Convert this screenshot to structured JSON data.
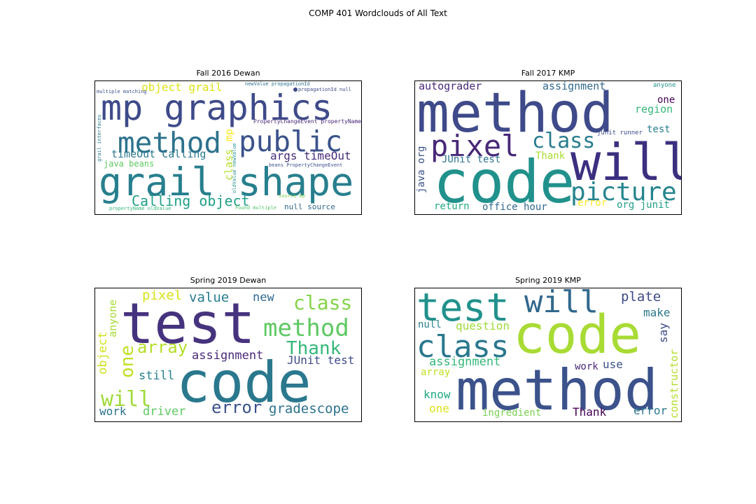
{
  "figure": {
    "suptitle": "COMP 401 Wordclouds of All Text"
  },
  "chart_data": [
    {
      "type": "wordcloud",
      "title": "Fall 2016 Dewan",
      "words": [
        {
          "text": "mp graphics",
          "weight": 1.0
        },
        {
          "text": "grail shape",
          "weight": 0.98
        },
        {
          "text": "method",
          "weight": 0.82
        },
        {
          "text": "public",
          "weight": 0.82
        },
        {
          "text": "Calling object",
          "weight": 0.45
        },
        {
          "text": "object grail",
          "weight": 0.4
        },
        {
          "text": "args timeOut",
          "weight": 0.4
        },
        {
          "text": "timeOut Calling",
          "weight": 0.38
        },
        {
          "text": "class",
          "weight": 0.35
        },
        {
          "text": "mp",
          "weight": 0.33
        },
        {
          "text": "java beans",
          "weight": 0.3
        },
        {
          "text": "null source",
          "weight": 0.29
        },
        {
          "text": "PropertyChangeEvent propertyName",
          "weight": 0.2
        },
        {
          "text": "beans PropertyChangeEvent",
          "weight": 0.18
        },
        {
          "text": "propagationId null",
          "weight": 0.18
        },
        {
          "text": "newValue propagationId",
          "weight": 0.17
        },
        {
          "text": "propertyName oldValue",
          "weight": 0.17
        },
        {
          "text": "oldValue newValue",
          "weight": 0.17
        },
        {
          "text": "grail interfaces",
          "weight": 0.16
        },
        {
          "text": "source mp",
          "weight": 0.16
        },
        {
          "text": "Found multiple",
          "weight": 0.16
        },
        {
          "text": "multiple matching",
          "weight": 0.16
        }
      ]
    },
    {
      "type": "wordcloud",
      "title": "Fall 2017 KMP",
      "words": [
        {
          "text": "method",
          "weight": 1.0
        },
        {
          "text": "code",
          "weight": 1.0
        },
        {
          "text": "will",
          "weight": 0.95
        },
        {
          "text": "pixel",
          "weight": 0.68
        },
        {
          "text": "picture",
          "weight": 0.58
        },
        {
          "text": "class",
          "weight": 0.5
        },
        {
          "text": "autograder",
          "weight": 0.3
        },
        {
          "text": "assignment",
          "weight": 0.3
        },
        {
          "text": "JUnit test",
          "weight": 0.28
        },
        {
          "text": "Thank",
          "weight": 0.28
        },
        {
          "text": "region",
          "weight": 0.3
        },
        {
          "text": "one",
          "weight": 0.27
        },
        {
          "text": "test",
          "weight": 0.27
        },
        {
          "text": "office hour",
          "weight": 0.28
        },
        {
          "text": "return",
          "weight": 0.26
        },
        {
          "text": "java org",
          "weight": 0.26
        },
        {
          "text": "error",
          "weight": 0.26
        },
        {
          "text": "org junit",
          "weight": 0.26
        },
        {
          "text": "anyone",
          "weight": 0.17
        },
        {
          "text": "junit runner",
          "weight": 0.17
        }
      ]
    },
    {
      "type": "wordcloud",
      "title": "Spring 2019 Dewan",
      "words": [
        {
          "text": "test",
          "weight": 1.0
        },
        {
          "text": "code",
          "weight": 1.0
        },
        {
          "text": "method",
          "weight": 0.55
        },
        {
          "text": "class",
          "weight": 0.45
        },
        {
          "text": "array",
          "weight": 0.42
        },
        {
          "text": "Thank",
          "weight": 0.42
        },
        {
          "text": "will",
          "weight": 0.5
        },
        {
          "text": "one",
          "weight": 0.42
        },
        {
          "text": "error",
          "weight": 0.42
        },
        {
          "text": "assignment",
          "weight": 0.33
        },
        {
          "text": "gradescope",
          "weight": 0.33
        },
        {
          "text": "value",
          "weight": 0.33
        },
        {
          "text": "pixel",
          "weight": 0.33
        },
        {
          "text": "new",
          "weight": 0.3
        },
        {
          "text": "JUnit test",
          "weight": 0.3
        },
        {
          "text": "still",
          "weight": 0.3
        },
        {
          "text": "driver",
          "weight": 0.3
        },
        {
          "text": "work",
          "weight": 0.3
        },
        {
          "text": "object",
          "weight": 0.3
        },
        {
          "text": "anyone",
          "weight": 0.27
        }
      ]
    },
    {
      "type": "wordcloud",
      "title": "Spring 2019 KMP",
      "words": [
        {
          "text": "code",
          "weight": 1.0
        },
        {
          "text": "method",
          "weight": 1.0
        },
        {
          "text": "test",
          "weight": 0.72
        },
        {
          "text": "class",
          "weight": 0.6
        },
        {
          "text": "will",
          "weight": 0.6
        },
        {
          "text": "plate",
          "weight": 0.3
        },
        {
          "text": "make",
          "weight": 0.27
        },
        {
          "text": "say",
          "weight": 0.27
        },
        {
          "text": "question",
          "weight": 0.27
        },
        {
          "text": "null",
          "weight": 0.25
        },
        {
          "text": "assignment",
          "weight": 0.28
        },
        {
          "text": "array",
          "weight": 0.23
        },
        {
          "text": "work",
          "weight": 0.25
        },
        {
          "text": "use",
          "weight": 0.27
        },
        {
          "text": "know",
          "weight": 0.27
        },
        {
          "text": "one",
          "weight": 0.27
        },
        {
          "text": "ingredient",
          "weight": 0.25
        },
        {
          "text": "Thank",
          "weight": 0.27
        },
        {
          "text": "error",
          "weight": 0.27
        },
        {
          "text": "constructor",
          "weight": 0.25
        }
      ]
    }
  ]
}
